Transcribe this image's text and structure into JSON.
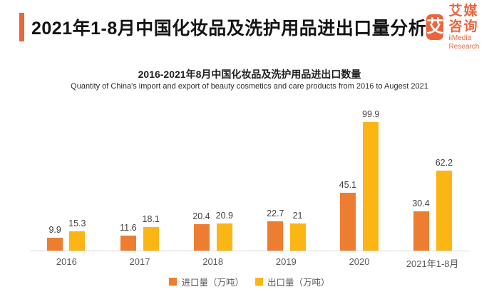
{
  "header": {
    "title": "2021年1-8月中国化妆品及洗护用品进出口量分析",
    "logo": {
      "glyph": "艾",
      "name_cn": "艾媒咨询",
      "name_en": "iiMedia Research"
    }
  },
  "chart": {
    "title": "2016-2021年8月中国化妆品及洗护用品进出口数量",
    "subtitle": "Quantity of China's import and export of beauty cosmetics and care products from 2016 to Augest 2021"
  },
  "chart_data": {
    "type": "bar",
    "categories": [
      "2016",
      "2017",
      "2018",
      "2019",
      "2020",
      "2021年1-8月"
    ],
    "series": [
      {
        "key": "import",
        "name": "进口量（万吨）",
        "color": "#ED7D31",
        "values": [
          9.9,
          11.6,
          20.4,
          22.7,
          45.1,
          30.4
        ]
      },
      {
        "key": "export",
        "name": "出口量（万吨）",
        "color": "#FBB615",
        "values": [
          15.3,
          18.1,
          20.9,
          21,
          99.9,
          62.2
        ]
      }
    ],
    "title": "2016-2021年8月中国化妆品及洗护用品进出口数量",
    "xlabel": "",
    "ylabel": "",
    "ylim": [
      0,
      100
    ],
    "grid": false,
    "value_labels": true,
    "legend_position": "bottom"
  },
  "colors": {
    "accent": "#E9653E",
    "import_bar": "#ED7D31",
    "export_bar": "#FBB615",
    "axis_line": "#D9D9D9",
    "axis_label_text": "#595959",
    "value_label_text": "#404040"
  }
}
